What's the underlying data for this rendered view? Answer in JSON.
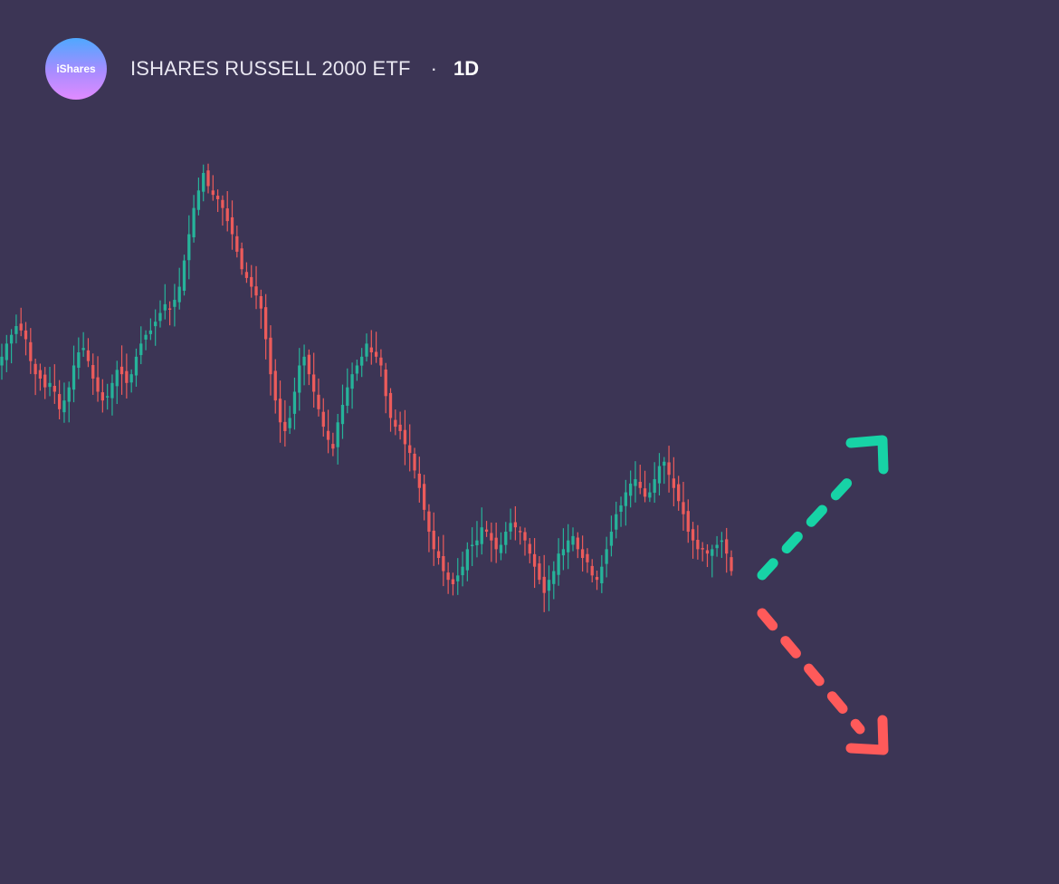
{
  "header": {
    "logo_text": "iShares",
    "title": "ISHARES RUSSELL 2000 ETF",
    "separator": "·",
    "interval": "1D"
  },
  "colors": {
    "background": "#3c3555",
    "up": "#26b39a",
    "down": "#ec5b5b",
    "arrow_up": "#17d3a6",
    "arrow_down": "#ff5a5a"
  },
  "icons": {
    "up_arrow": "dashed-arrow-up-right-icon",
    "down_arrow": "dashed-arrow-down-right-icon"
  },
  "chart_data": {
    "type": "candlestick",
    "title": "ISHARES RUSSELL 2000 ETF",
    "interval": "1D",
    "axes_visible": false,
    "grid": false,
    "ylim": [
      0,
      100
    ],
    "close": [
      52,
      55,
      57,
      59,
      58,
      56,
      51,
      48,
      47,
      45,
      46,
      44,
      40,
      42,
      45,
      50,
      53,
      54,
      51,
      47,
      44,
      42,
      43,
      46,
      49,
      48,
      46,
      48,
      52,
      55,
      57,
      58,
      60,
      62,
      64,
      63,
      65,
      68,
      74,
      80,
      86,
      90,
      94,
      91,
      89,
      88,
      86,
      83,
      80,
      76,
      72,
      70,
      68,
      66,
      63,
      56,
      48,
      42,
      37,
      35,
      38,
      44,
      50,
      52,
      48,
      44,
      40,
      36,
      33,
      31,
      37,
      41,
      45,
      48,
      50,
      52,
      55,
      53,
      52,
      50,
      43,
      38,
      36,
      35,
      32,
      30,
      26,
      22,
      17,
      12,
      8,
      6,
      3,
      1,
      0,
      2,
      4,
      8,
      9,
      10,
      13,
      12,
      10,
      8,
      9,
      12,
      14,
      13,
      12,
      10,
      7,
      4,
      1,
      -2,
      1,
      3,
      7,
      8,
      10,
      11,
      8,
      6,
      5,
      2,
      1,
      4,
      8,
      12,
      16,
      18,
      21,
      23,
      24,
      22,
      20,
      21,
      24,
      27,
      28,
      25,
      22,
      19,
      16,
      12,
      10,
      8,
      8,
      7,
      8,
      9,
      10,
      7,
      3
    ]
  }
}
